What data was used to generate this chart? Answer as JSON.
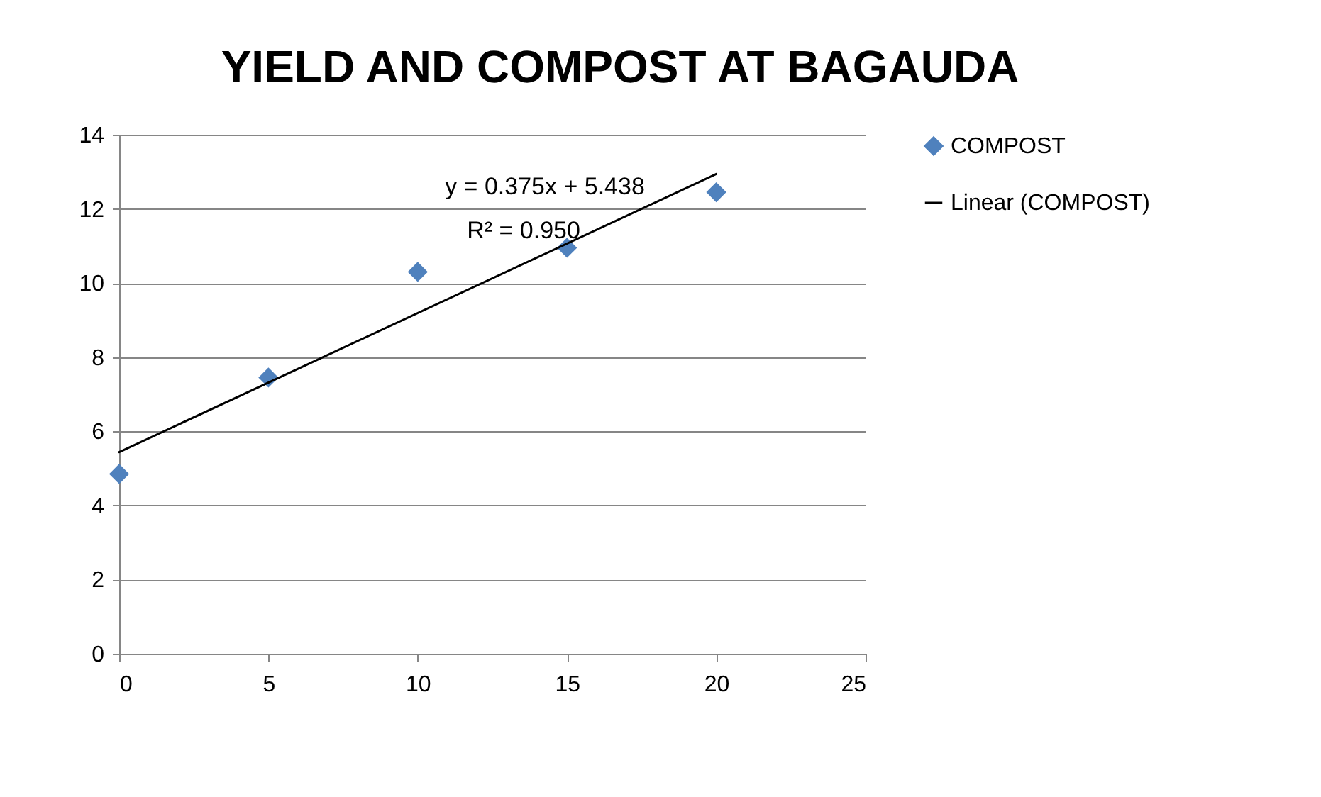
{
  "chart_data": {
    "type": "scatter",
    "title": "YIELD AND COMPOST AT BAGAUDA",
    "x": [
      0,
      5,
      10,
      15,
      20
    ],
    "series": [
      {
        "name": "COMPOST",
        "color": "#4f81bd",
        "marker": "diamond",
        "values": [
          4.85,
          7.45,
          10.3,
          10.95,
          12.45
        ]
      },
      {
        "name": "Linear (COMPOST)",
        "type": "line",
        "color": "#000000",
        "x": [
          0,
          20
        ],
        "values": [
          5.44,
          12.94
        ]
      }
    ],
    "annotations": [
      "y = 0.375x + 5.438",
      "R² = 0.950"
    ],
    "xlim": [
      0,
      25
    ],
    "xticks": [
      0,
      5,
      10,
      15,
      20,
      25
    ],
    "ylim": [
      0,
      14
    ],
    "yticks": [
      0,
      2,
      4,
      6,
      8,
      10,
      12,
      14
    ],
    "grid": "y",
    "legend": "right"
  }
}
